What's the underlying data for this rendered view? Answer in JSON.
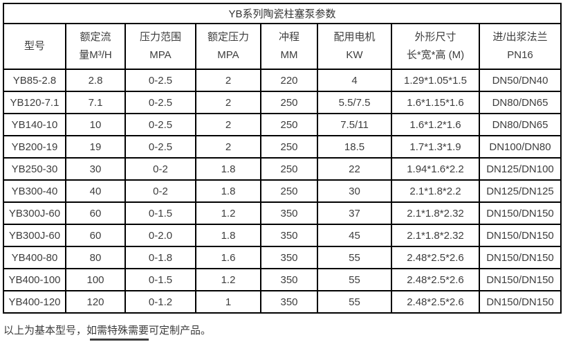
{
  "title": "YB系列陶瓷柱塞泵参数",
  "columns": [
    {
      "line1": "型号",
      "line2": ""
    },
    {
      "line1": "额定流",
      "line2": "量M³/H"
    },
    {
      "line1": "压力范围",
      "line2": "MPA"
    },
    {
      "line1": "额定压力",
      "line2": "MPA"
    },
    {
      "line1": "冲程",
      "line2": "MM"
    },
    {
      "line1": "配用电机",
      "line2": "KW"
    },
    {
      "line1": "外形尺寸",
      "line2": "长*宽*高 (M)"
    },
    {
      "line1": "进/出浆法兰",
      "line2": "PN16"
    }
  ],
  "rows": [
    [
      "YB85-2.8",
      "2.8",
      "0-2.5",
      "2",
      "220",
      "4",
      "1.29*1.05*1.5",
      "DN50/DN40"
    ],
    [
      "YB120-7.1",
      "7.1",
      "0-2.5",
      "2",
      "250",
      "5.5/7.5",
      "1.6*1.15*1.6",
      "DN80/DN65"
    ],
    [
      "YB140-10",
      "10",
      "0-2.5",
      "2",
      "250",
      "7.5/11",
      "1.6*1.2*1.6",
      "DN80/DN65"
    ],
    [
      "YB200-19",
      "19",
      "0-2.5",
      "2",
      "250",
      "18.5",
      "1.7*1.3*1.9",
      "DN100/DN80"
    ],
    [
      "YB250-30",
      "30",
      "0-2",
      "1.8",
      "250",
      "22",
      "1.94*1.6*2.2",
      "DN125/DN100"
    ],
    [
      "YB300-40",
      "40",
      "0-2",
      "1.8",
      "250",
      "30",
      "2.1*1.8*2.2",
      "DN125/DN125"
    ],
    [
      "YB300J-60",
      "60",
      "0-1.5",
      "1.2",
      "350",
      "37",
      "2.1*1.8*2.32",
      "DN150/DN150"
    ],
    [
      "YB300J-60",
      "60",
      "0-2.0",
      "1.8",
      "350",
      "45",
      "2.1*1.8*2.32",
      "DN150/DN150"
    ],
    [
      "YB400-80",
      "80",
      "0-1.8",
      "1.6",
      "350",
      "55",
      "2.48*2.5*2.6",
      "DN150/DN150"
    ],
    [
      "YB400-100",
      "100",
      "0-1.5",
      "1.2",
      "350",
      "55",
      "2.48*2.5*2.6",
      "DN150/DN150"
    ],
    [
      "YB400-120",
      "120",
      "0-1.2",
      "1",
      "350",
      "55",
      "2.48*2.5*2.6",
      "DN150/DN150"
    ]
  ],
  "footnote": "以上为基本型号，如需特殊需要可定制产品。",
  "colors": {
    "border": "#000000",
    "text": "#3d3d3d",
    "background": "#ffffff"
  }
}
